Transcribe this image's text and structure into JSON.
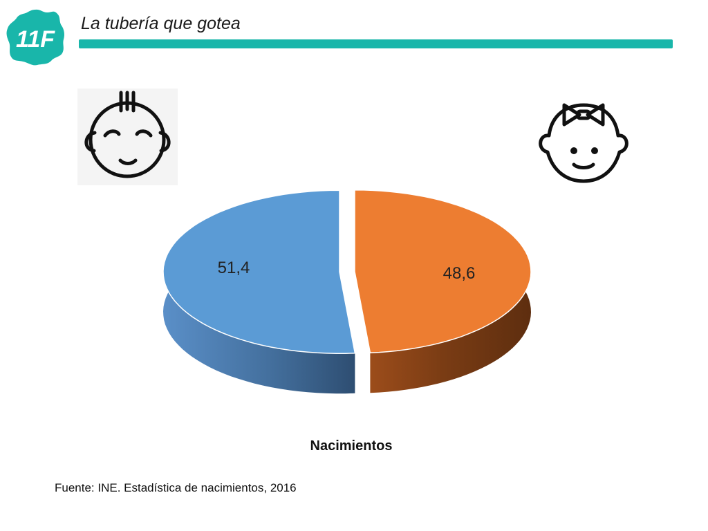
{
  "header": {
    "logo_text": "11F",
    "title": "La tubería que gotea",
    "accent_color": "#19b6aa"
  },
  "icons": {
    "left": "baby-boy-icon",
    "right": "baby-girl-icon"
  },
  "chart_data": {
    "type": "pie",
    "style": "3d-exploded",
    "title": "Nacimientos",
    "slices": [
      {
        "label": "51,4",
        "value": 51.4,
        "color": "#5b9bd5"
      },
      {
        "label": "48,6",
        "value": 48.6,
        "color": "#ed7d31"
      }
    ],
    "legend": "none"
  },
  "footer": {
    "source": "Fuente: INE. Estadística de nacimientos, 2016"
  }
}
